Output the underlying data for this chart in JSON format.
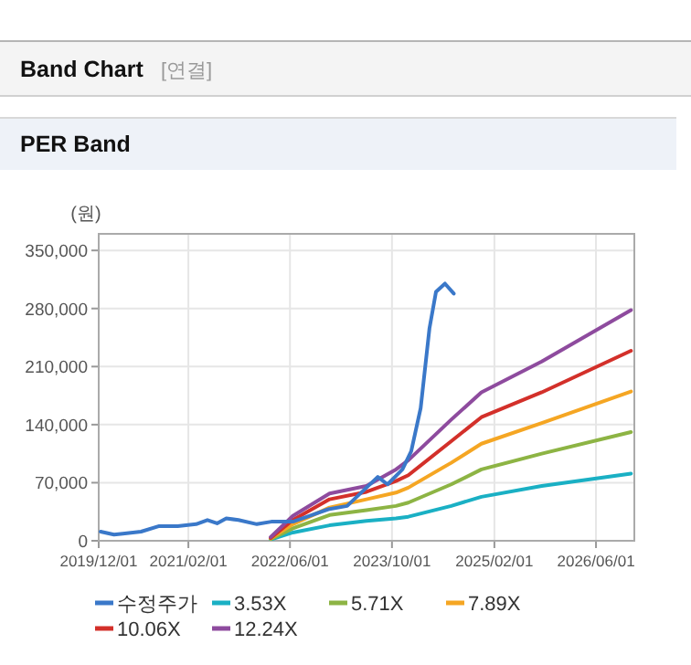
{
  "chart_data": {
    "type": "line",
    "title": "Band Chart",
    "subtitle": "PER Band",
    "annotations": [
      "[연결]"
    ],
    "ylabel": "(원)",
    "xlim": [
      "2019-12-01",
      "2026-12-01"
    ],
    "xticks": [
      {
        "value": "2019-12-01",
        "label": "2019/12/01"
      },
      {
        "value": "2021-02-01",
        "label": "2021/02/01"
      },
      {
        "value": "2022-06-01",
        "label": "2022/06/01"
      },
      {
        "value": "2023-10-01",
        "label": "2023/10/01"
      },
      {
        "value": "2025-02-01",
        "label": "2025/02/01"
      },
      {
        "value": "2026-06-01",
        "label": "2026/06/01"
      }
    ],
    "ylim": [
      0,
      370000
    ],
    "yticks": [
      0,
      {
        "value": 70000,
        "label": "70,000"
      },
      {
        "value": 140000,
        "label": "140,000"
      },
      {
        "value": 210000,
        "label": "210,000"
      },
      {
        "value": 280000,
        "label": "280,000"
      },
      {
        "value": 350000,
        "label": "350,000"
      }
    ],
    "grid": true,
    "legend": "bottom",
    "series": [
      {
        "name": "수정주가",
        "color": "#3a78c9",
        "x": [
          "2019-12-10",
          "2020-02-12",
          "2020-03-25",
          "2020-06-20",
          "2020-09-15",
          "2020-12-12",
          "2021-03-10",
          "2021-05-03",
          "2021-06-18",
          "2021-08-01",
          "2021-09-28",
          "2021-12-25",
          "2022-03-04",
          "2022-06-15",
          "2022-09-01",
          "2022-12-01",
          "2023-03-01",
          "2023-06-01",
          "2023-07-25",
          "2023-09-10",
          "2023-11-20",
          "2024-01-01",
          "2024-02-15",
          "2024-03-28",
          "2024-04-28",
          "2024-06-10",
          "2024-07-22"
        ],
        "values": [
          11000,
          7500,
          8500,
          11000,
          17700,
          17700,
          20000,
          25000,
          21000,
          27000,
          25000,
          20000,
          23000,
          23000,
          30000,
          38000,
          42000,
          64000,
          77000,
          68000,
          86000,
          108000,
          160000,
          256000,
          300000,
          310000,
          298000
        ]
      },
      {
        "name": "3.53X",
        "color": "#1ab0c4",
        "x": [
          "2022-03-01",
          "2022-06-15",
          "2022-12-07",
          "2023-06-01",
          "2023-10-20",
          "2023-12-18",
          "2024-07-10",
          "2024-12-01",
          "2025-09-15",
          "2026-11-15"
        ],
        "values": [
          1500,
          10000,
          18600,
          24000,
          27000,
          29000,
          42000,
          53000,
          66000,
          81000
        ]
      },
      {
        "name": "5.71X",
        "color": "#8db444",
        "x": [
          "2022-03-01",
          "2022-06-15",
          "2022-12-07",
          "2023-06-01",
          "2023-10-20",
          "2023-12-18",
          "2024-07-10",
          "2024-12-01",
          "2025-09-15",
          "2026-11-15"
        ],
        "values": [
          2000,
          15000,
          31000,
          37000,
          42000,
          46000,
          68000,
          86000,
          105000,
          131000
        ]
      },
      {
        "name": "7.89X",
        "color": "#f5a623",
        "x": [
          "2022-03-01",
          "2022-06-15",
          "2022-12-07",
          "2023-06-01",
          "2023-10-20",
          "2023-12-18",
          "2024-07-10",
          "2024-12-01",
          "2025-09-15",
          "2026-11-15"
        ],
        "values": [
          3000,
          20000,
          40000,
          50000,
          58000,
          64000,
          94000,
          117000,
          142000,
          180000
        ]
      },
      {
        "name": "10.06X",
        "color": "#d3302a",
        "x": [
          "2022-03-01",
          "2022-06-15",
          "2022-12-07",
          "2023-06-01",
          "2023-10-20",
          "2023-12-18",
          "2024-07-10",
          "2024-12-01",
          "2025-09-15",
          "2026-11-15"
        ],
        "values": [
          3500,
          25000,
          50000,
          59000,
          72000,
          79000,
          120000,
          149000,
          179000,
          229000
        ]
      },
      {
        "name": "12.24X",
        "color": "#8e4b9e",
        "x": [
          "2022-03-01",
          "2022-06-15",
          "2022-12-07",
          "2023-06-01",
          "2023-10-20",
          "2023-12-18",
          "2024-07-10",
          "2024-12-01",
          "2025-09-15",
          "2026-11-15"
        ],
        "values": [
          4500,
          30000,
          57000,
          66000,
          86000,
          97000,
          146000,
          179000,
          216000,
          278000
        ]
      }
    ]
  }
}
